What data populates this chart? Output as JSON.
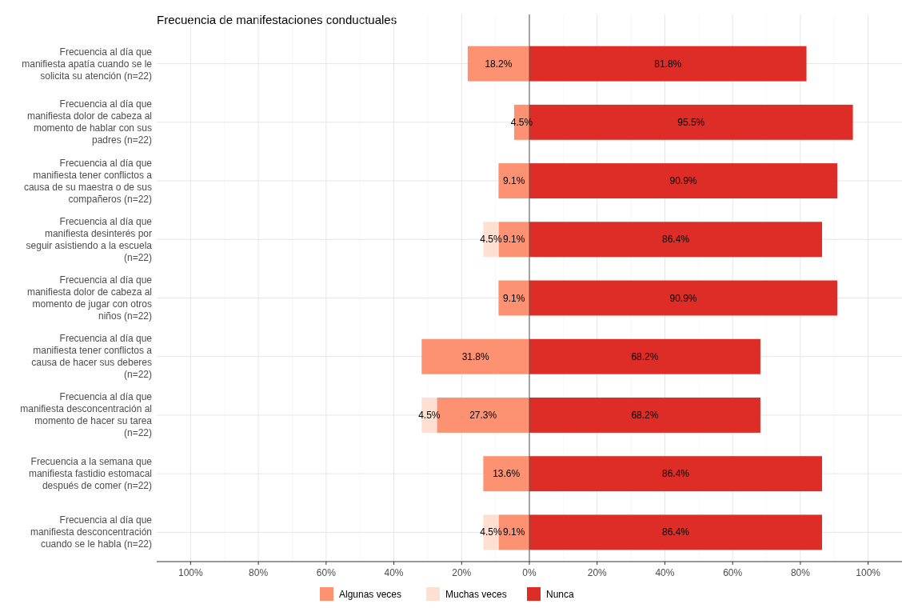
{
  "chart_data": {
    "type": "bar",
    "orientation": "horizontal",
    "title": "Frecuencia de manifestaciones conductuales",
    "categories": [
      "Frecuencia al día que manifiesta apatía cuando se le solicita su atención (n=22)",
      "Frecuencia al día que manifiesta dolor de cabeza al momento de hablar con sus padres (n=22)",
      "Frecuencia al día que manifiesta tener conflictos a causa de su maestra o de sus compañeros (n=22)",
      "Frecuencia al día que manifiesta desinterés por seguir asistiendo a la escuela (n=22)",
      "Frecuencia al día que manifiesta dolor de cabeza al momento de jugar con otros niños (n=22)",
      "Frecuencia al día que manifiesta tener conflictos a causa de hacer sus deberes (n=22)",
      "Frecuencia al día que manifiesta desconcentración al momento de hacer su tarea (n=22)",
      "Frecuencia a la semana que manifiesta fastidio estomacal después de comer (n=22)",
      "Frecuencia al día que manifiesta desconcentración cuando se le habla (n=22)"
    ],
    "series": [
      {
        "name": "Algunas veces",
        "color": "#fc9272",
        "values": [
          18.2,
          4.5,
          9.1,
          9.1,
          9.1,
          31.8,
          27.3,
          13.6,
          9.1
        ],
        "base": [
          -18.2,
          -4.5,
          -9.1,
          -9.1,
          -9.1,
          -31.8,
          -27.3,
          -13.6,
          -9.1
        ],
        "value_labels": [
          "18.2%",
          "4.5%",
          "9.1%",
          "9.1%",
          "9.1%",
          "31.8%",
          "27.3%",
          "13.6%",
          "9.1%"
        ]
      },
      {
        "name": "Muchas veces",
        "color": "#fee0d2",
        "values": [
          null,
          null,
          null,
          4.5,
          null,
          null,
          4.5,
          null,
          4.5
        ],
        "base": [
          null,
          null,
          null,
          -13.6,
          null,
          null,
          -31.8,
          null,
          -13.6
        ],
        "value_labels": [
          null,
          null,
          null,
          "4.5%",
          null,
          null,
          "4.5%",
          null,
          "4.5%"
        ]
      },
      {
        "name": "Nunca",
        "color": "#de2d26",
        "values": [
          81.8,
          95.5,
          90.9,
          86.4,
          90.9,
          68.2,
          68.2,
          86.4,
          86.4
        ],
        "value_labels": [
          "81.8%",
          "95.5%",
          "90.9%",
          "86.4%",
          "90.9%",
          "68.2%",
          "68.2%",
          "86.4%",
          "86.4%"
        ]
      }
    ],
    "xlim": [
      -110,
      110
    ],
    "xticks": [
      {
        "value": -100,
        "label": "100%"
      },
      {
        "value": -80,
        "label": "80%"
      },
      {
        "value": -60,
        "label": "60%"
      },
      {
        "value": -40,
        "label": "40%"
      },
      {
        "value": -20,
        "label": "20%"
      },
      {
        "value": 0,
        "label": "0%"
      },
      {
        "value": 20,
        "label": "20%"
      },
      {
        "value": 40,
        "label": "40%"
      },
      {
        "value": 60,
        "label": "60%"
      },
      {
        "value": 80,
        "label": "80%"
      },
      {
        "value": 100,
        "label": "100%"
      }
    ],
    "ref_lines": [
      {
        "axis": "x",
        "value": 0,
        "color": "#555555"
      }
    ],
    "grid": true,
    "legend": "bottom"
  }
}
